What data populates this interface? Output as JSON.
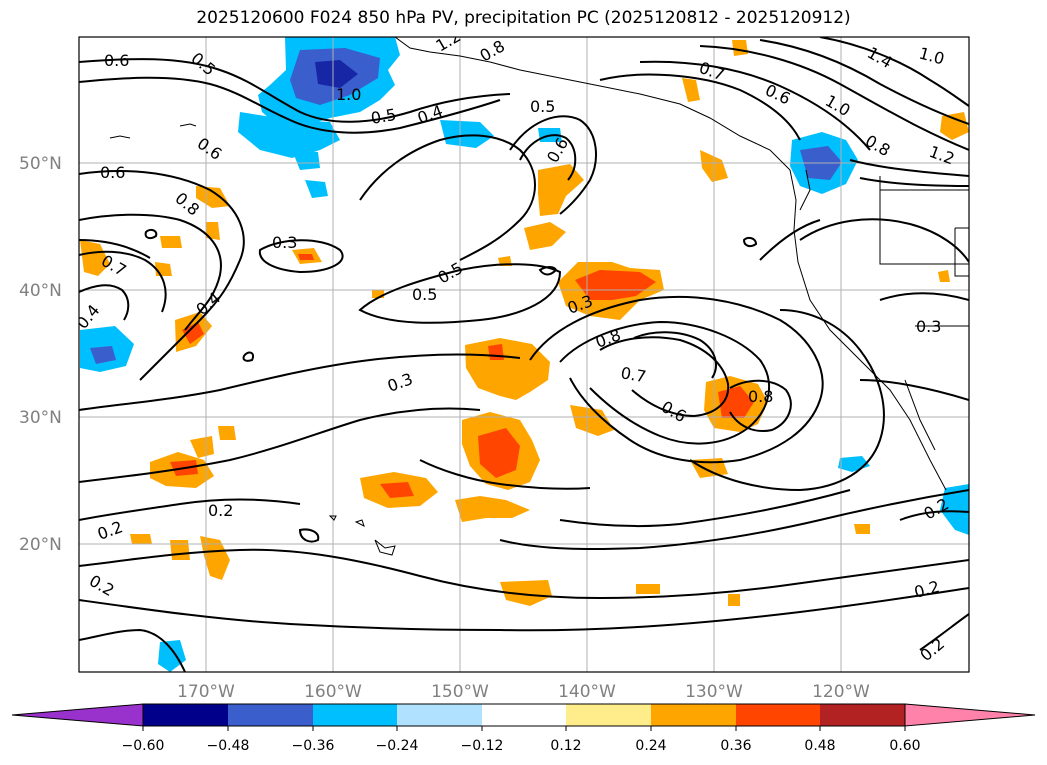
{
  "title": "2025120600 F024 850 hPa PV, precipitation PC (2025120812 - 2025120912)",
  "map": {
    "lat_labels": [
      "50°N",
      "40°N",
      "30°N",
      "20°N"
    ],
    "lon_labels": [
      "170°W",
      "160°W",
      "150°W",
      "140°W",
      "130°W",
      "120°W"
    ],
    "contour_labels": [
      "0.6",
      "0.5",
      "1.2",
      "0.8",
      "0.7",
      "1.4",
      "1.0",
      "0.6",
      "1.0",
      "0.8",
      "1.2",
      "0.6",
      "0.5",
      "0.4",
      "0.6",
      "0.6",
      "0.8",
      "0.5",
      "0.3",
      "0.7",
      "0.4",
      "0.4",
      "0.5",
      "0.5",
      "0.8",
      "0.7",
      "0.6",
      "0.8",
      "0.3",
      "0.3",
      "0.2",
      "0.2",
      "0.2",
      "0.2",
      "0.2",
      "0.2",
      "1.0",
      "0.3"
    ]
  },
  "colorbar": {
    "colors": [
      "#9932cc",
      "#00008b",
      "#3a5fcd",
      "#00bfff",
      "#b0e2ff",
      "#ffffff",
      "#ffec8b",
      "#ffa500",
      "#ff4500",
      "#b22222",
      "#ff82ab"
    ],
    "tick_labels": [
      "−0.60",
      "−0.48",
      "−0.36",
      "−0.24",
      "−0.12",
      "0.12",
      "0.24",
      "0.36",
      "0.48",
      "0.60"
    ]
  }
}
